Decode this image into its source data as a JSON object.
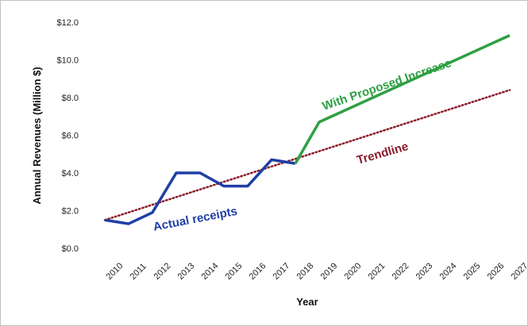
{
  "chart_data": {
    "type": "line",
    "xlabel": "Year",
    "ylabel": "Annual Revenues (Million $)",
    "ylim": [
      0,
      12
    ],
    "yticks": [
      "$0.0",
      "$2.0",
      "$4.0",
      "$6.0",
      "$8.0",
      "$10.0",
      "$12.0"
    ],
    "ytick_values": [
      0,
      2,
      4,
      6,
      8,
      10,
      12
    ],
    "x": [
      "2010",
      "2011",
      "2012",
      "2013",
      "2014",
      "2015",
      "2016",
      "2017",
      "2018",
      "2019",
      "2020",
      "2021",
      "2022",
      "2023",
      "2024",
      "2025",
      "2026",
      "2027"
    ],
    "grid": false,
    "series": [
      {
        "name": "Actual receipts",
        "style": "solid",
        "color": "#1f3fa6",
        "x": [
          "2010",
          "2011",
          "2012",
          "2013",
          "2014",
          "2015",
          "2016",
          "2017",
          "2018"
        ],
        "values": [
          1.5,
          1.3,
          1.9,
          4.0,
          4.0,
          3.3,
          3.3,
          4.7,
          4.5
        ]
      },
      {
        "name": "With Proposed Increase",
        "style": "solid",
        "color": "#2ea043",
        "x": [
          "2018",
          "2019",
          "2027"
        ],
        "values": [
          4.5,
          6.7,
          11.3
        ]
      },
      {
        "name": "Trendline",
        "style": "dotted",
        "color": "#8b1c2b",
        "x": [
          "2010",
          "2027"
        ],
        "values": [
          1.5,
          8.4
        ]
      }
    ],
    "annotations": [
      {
        "text": "Actual receipts",
        "color": "#1f3fa6"
      },
      {
        "text": "With Proposed Increase",
        "color": "#2ea043"
      },
      {
        "text": "Trendline",
        "color": "#8b1c2b"
      }
    ]
  }
}
